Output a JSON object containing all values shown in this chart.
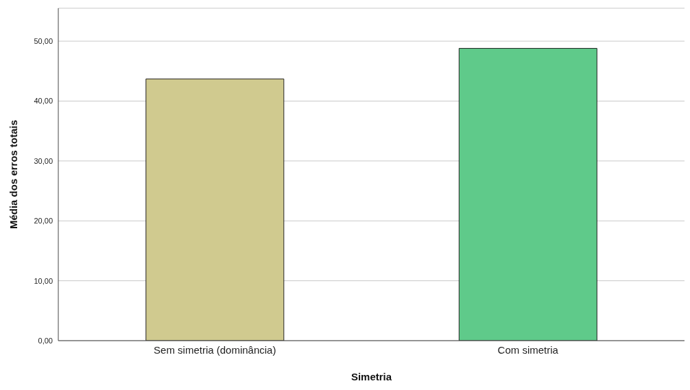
{
  "chart_data": {
    "type": "bar",
    "xlabel": "Simetria",
    "ylabel": "Média dos erros totais",
    "categories": [
      "Sem simetria (dominância)",
      "Com simetria"
    ],
    "values": [
      43.7,
      48.8
    ],
    "colors": [
      "#d0ca8f",
      "#5fca8a"
    ],
    "ylim": [
      0,
      55.5
    ],
    "yticks": [
      {
        "value": 0,
        "label": "0,00"
      },
      {
        "value": 10,
        "label": "10,00"
      },
      {
        "value": 20,
        "label": "20,00"
      },
      {
        "value": 30,
        "label": "30,00"
      },
      {
        "value": 40,
        "label": "40,00"
      },
      {
        "value": 50,
        "label": "50,00"
      }
    ],
    "grid": "y"
  }
}
